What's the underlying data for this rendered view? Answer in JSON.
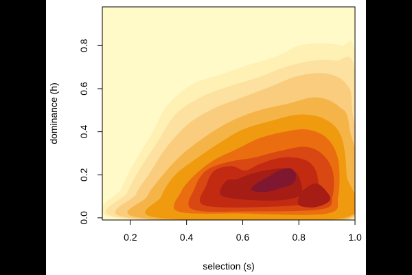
{
  "chart_data": {
    "type": "heatmap",
    "subtype": "filled-density-contour",
    "xlabel": "selection (s)",
    "ylabel": "dominance (h)",
    "xlim": [
      0.1,
      1.0
    ],
    "ylim": [
      -0.01,
      0.98
    ],
    "x_ticks": [
      0.2,
      0.4,
      0.6,
      0.8,
      1.0
    ],
    "x_tick_labels": [
      "0.2",
      "0.4",
      "0.6",
      "0.8",
      "1.0"
    ],
    "y_ticks": [
      0.0,
      0.2,
      0.4,
      0.6,
      0.8
    ],
    "y_tick_labels": [
      "0.0",
      "0.2",
      "0.4",
      "0.6",
      "0.8"
    ],
    "grid": false,
    "palette": [
      "#fffac8",
      "#fff0b4",
      "#fde1a0",
      "#f9cc7e",
      "#f5b447",
      "#f09a0f",
      "#ea6d10",
      "#d94812",
      "#c32a12",
      "#a51d14",
      "#7f1731"
    ],
    "density_levels": [
      {
        "level": 1,
        "color": "#fff0b4",
        "polygon": [
          [
            0.15,
            0.0
          ],
          [
            0.17,
            0.14
          ],
          [
            0.22,
            0.27
          ],
          [
            0.28,
            0.4
          ],
          [
            0.33,
            0.52
          ],
          [
            0.42,
            0.62
          ],
          [
            0.53,
            0.67
          ],
          [
            0.62,
            0.71
          ],
          [
            0.72,
            0.75
          ],
          [
            0.8,
            0.8
          ],
          [
            0.88,
            0.81
          ],
          [
            0.95,
            0.8
          ],
          [
            1.0,
            0.75
          ],
          [
            1.0,
            0.0
          ]
        ]
      },
      {
        "level": 2,
        "color": "#fde1a0",
        "polygon": [
          [
            0.17,
            0.0
          ],
          [
            0.19,
            0.12
          ],
          [
            0.24,
            0.24
          ],
          [
            0.3,
            0.36
          ],
          [
            0.36,
            0.48
          ],
          [
            0.45,
            0.56
          ],
          [
            0.55,
            0.61
          ],
          [
            0.65,
            0.65
          ],
          [
            0.75,
            0.7
          ],
          [
            0.85,
            0.73
          ],
          [
            0.93,
            0.73
          ],
          [
            1.0,
            0.68
          ],
          [
            1.0,
            0.0
          ]
        ]
      },
      {
        "level": 3,
        "color": "#f9cc7e",
        "polygon": [
          [
            0.2,
            0.0
          ],
          [
            0.22,
            0.11
          ],
          [
            0.27,
            0.21
          ],
          [
            0.33,
            0.33
          ],
          [
            0.41,
            0.44
          ],
          [
            0.5,
            0.51
          ],
          [
            0.6,
            0.56
          ],
          [
            0.7,
            0.61
          ],
          [
            0.8,
            0.66
          ],
          [
            0.9,
            0.67
          ],
          [
            0.97,
            0.62
          ],
          [
            0.99,
            0.5
          ],
          [
            0.99,
            0.0
          ]
        ]
      },
      {
        "level": 4,
        "color": "#f5b447",
        "polygon": [
          [
            0.24,
            0.0
          ],
          [
            0.26,
            0.1
          ],
          [
            0.31,
            0.19
          ],
          [
            0.38,
            0.29
          ],
          [
            0.47,
            0.38
          ],
          [
            0.56,
            0.45
          ],
          [
            0.66,
            0.5
          ],
          [
            0.76,
            0.53
          ],
          [
            0.86,
            0.56
          ],
          [
            0.94,
            0.52
          ],
          [
            0.98,
            0.42
          ],
          [
            0.98,
            0.0
          ]
        ]
      },
      {
        "level": 5,
        "color": "#f09a0f",
        "polygon": [
          [
            0.3,
            0.0
          ],
          [
            0.31,
            0.1
          ],
          [
            0.36,
            0.2
          ],
          [
            0.44,
            0.28
          ],
          [
            0.52,
            0.35
          ],
          [
            0.6,
            0.41
          ],
          [
            0.7,
            0.45
          ],
          [
            0.8,
            0.48
          ],
          [
            0.89,
            0.46
          ],
          [
            0.95,
            0.38
          ],
          [
            0.97,
            0.2
          ],
          [
            0.96,
            0.0
          ]
        ]
      },
      {
        "level": 6,
        "color": "#ea6d10",
        "polygon": [
          [
            0.37,
            0.03
          ],
          [
            0.38,
            0.12
          ],
          [
            0.43,
            0.2
          ],
          [
            0.5,
            0.27
          ],
          [
            0.58,
            0.32
          ],
          [
            0.66,
            0.37
          ],
          [
            0.75,
            0.4
          ],
          [
            0.83,
            0.41
          ],
          [
            0.9,
            0.37
          ],
          [
            0.94,
            0.27
          ],
          [
            0.94,
            0.1
          ],
          [
            0.9,
            0.02
          ],
          [
            0.6,
            0.02
          ]
        ]
      },
      {
        "level": 7,
        "color": "#d94812",
        "polygon": [
          [
            0.42,
            0.04
          ],
          [
            0.43,
            0.14
          ],
          [
            0.47,
            0.22
          ],
          [
            0.55,
            0.26
          ],
          [
            0.64,
            0.28
          ],
          [
            0.73,
            0.31
          ],
          [
            0.82,
            0.33
          ],
          [
            0.88,
            0.3
          ],
          [
            0.92,
            0.22
          ],
          [
            0.92,
            0.1
          ],
          [
            0.88,
            0.04
          ],
          [
            0.62,
            0.03
          ]
        ]
      },
      {
        "level": 8,
        "color": "#c32a12",
        "polygon": [
          [
            0.46,
            0.06
          ],
          [
            0.47,
            0.15
          ],
          [
            0.5,
            0.22
          ],
          [
            0.56,
            0.24
          ],
          [
            0.61,
            0.22
          ],
          [
            0.66,
            0.25
          ],
          [
            0.74,
            0.28
          ],
          [
            0.82,
            0.27
          ],
          [
            0.86,
            0.22
          ],
          [
            0.87,
            0.13
          ],
          [
            0.85,
            0.07
          ],
          [
            0.66,
            0.05
          ]
        ]
      },
      {
        "level": 9,
        "color": "#a51d14",
        "polygon": [
          [
            0.53,
            0.1
          ],
          [
            0.54,
            0.17
          ],
          [
            0.58,
            0.18
          ],
          [
            0.62,
            0.2
          ],
          [
            0.68,
            0.22
          ],
          [
            0.75,
            0.23
          ],
          [
            0.79,
            0.21
          ],
          [
            0.81,
            0.15
          ],
          [
            0.8,
            0.1
          ],
          [
            0.7,
            0.08
          ]
        ]
      },
      {
        "level": 10,
        "color": "#a51d14",
        "polygon": [
          [
            0.8,
            0.06
          ],
          [
            0.81,
            0.12
          ],
          [
            0.86,
            0.16
          ],
          [
            0.9,
            0.12
          ],
          [
            0.91,
            0.08
          ],
          [
            0.86,
            0.05
          ]
        ]
      },
      {
        "level": 11,
        "color": "#7f1731",
        "polygon": [
          [
            0.63,
            0.13
          ],
          [
            0.65,
            0.16
          ],
          [
            0.69,
            0.19
          ],
          [
            0.73,
            0.22
          ],
          [
            0.77,
            0.23
          ],
          [
            0.79,
            0.2
          ],
          [
            0.78,
            0.16
          ],
          [
            0.74,
            0.14
          ],
          [
            0.68,
            0.12
          ]
        ]
      }
    ]
  }
}
